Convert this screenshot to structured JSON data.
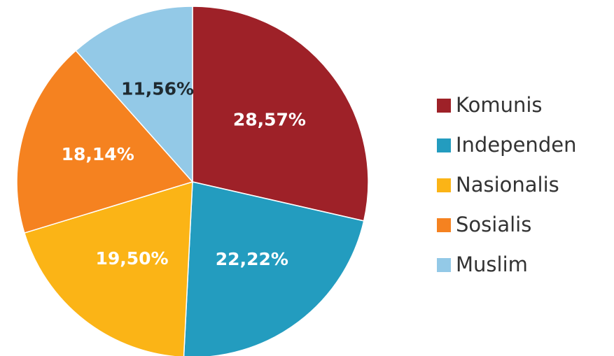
{
  "chart_data": {
    "type": "pie",
    "categories": [
      "Komunis",
      "Independen",
      "Nasionalis",
      "Sosialis",
      "Muslim"
    ],
    "values": [
      28.57,
      22.22,
      19.5,
      18.14,
      11.56
    ],
    "value_labels": [
      "28,57%",
      "22,22%",
      "19,50%",
      "18,14%",
      "11,56%"
    ],
    "colors": [
      "#9e2128",
      "#239cbf",
      "#fbb416",
      "#f58220",
      "#93c9e7"
    ],
    "label_colors": [
      "#ffffff",
      "#ffffff",
      "#ffffff",
      "#ffffff",
      "#1f2a30"
    ],
    "legend": "right"
  }
}
